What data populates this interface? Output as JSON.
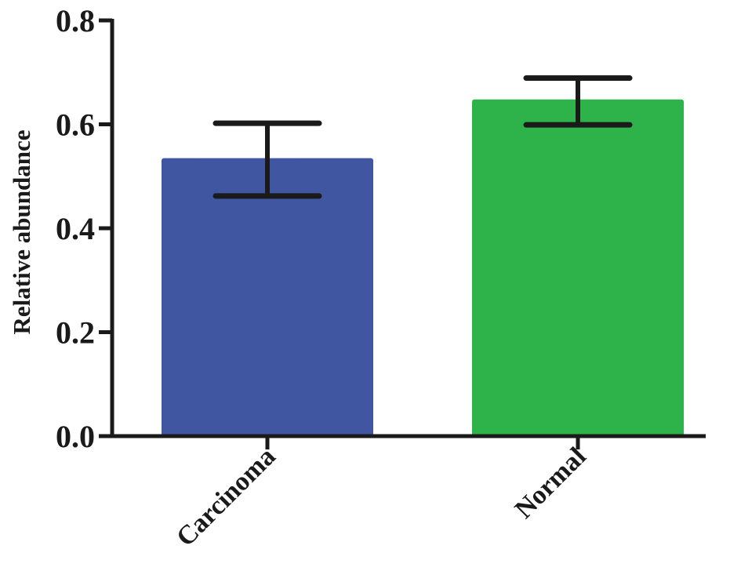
{
  "chart_data": {
    "type": "bar",
    "title": "",
    "xlabel": "",
    "ylabel": "Relative abundance",
    "ylim": [
      0,
      0.8
    ],
    "yticks": [
      0.0,
      0.2,
      0.4,
      0.6,
      0.8
    ],
    "ytick_labels": [
      "0.0",
      "0.2",
      "0.4",
      "0.6",
      "0.8"
    ],
    "categories": [
      "Carcinoma",
      "Normal"
    ],
    "values": [
      0.535,
      0.648
    ],
    "error_low": [
      0.462,
      0.599
    ],
    "error_high": [
      0.602,
      0.689
    ],
    "colors": [
      "#4056a1",
      "#2db34a"
    ],
    "grid": false,
    "legend": false
  }
}
